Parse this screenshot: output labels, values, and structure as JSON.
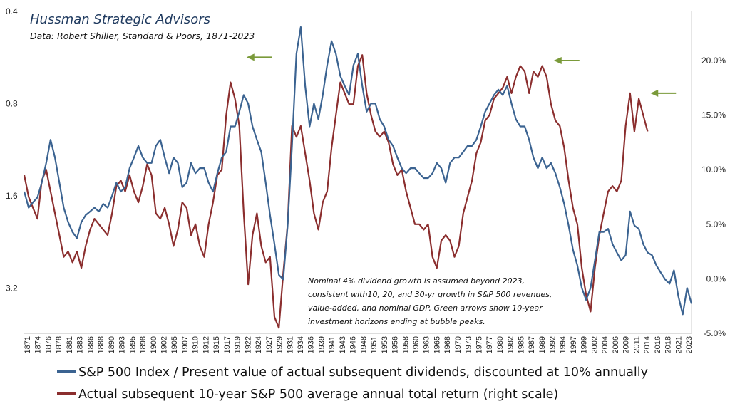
{
  "chart_data": {
    "type": "line",
    "title": "Hussman Strategic Advisors",
    "subtitle": "Data: Robert Shiller, Standard & Poors, 1871-2023",
    "annotation": [
      "Nominal 4% dividend growth is assumed beyond 2023,",
      "consistent with10, 20,  and 30-yr growth in S&P 500  revenues,",
      "value-added, and nominal GDP. Green arrows show 10-year",
      "investment horizons ending at bubble peaks."
    ],
    "x_range": [
      1871,
      2023
    ],
    "x_tick_labels": [
      "1871",
      "1874",
      "1876",
      "1878",
      "1881",
      "1883",
      "1886",
      "1888",
      "1890",
      "1893",
      "1895",
      "1898",
      "1900",
      "1902",
      "1905",
      "1907",
      "1910",
      "1912",
      "1915",
      "1917",
      "1919",
      "1922",
      "1924",
      "1927",
      "1929",
      "1931",
      "1934",
      "1936",
      "1939",
      "1941",
      "1943",
      "1946",
      "1948",
      "1951",
      "1953",
      "1956",
      "1958",
      "1960",
      "1963",
      "1965",
      "1968",
      "1970",
      "1973",
      "1975",
      "1977",
      "1980",
      "1982",
      "1985",
      "1987",
      "1989",
      "1992",
      "1994",
      "1997",
      "1999",
      "2002",
      "2004",
      "2006",
      "2009",
      "2011",
      "2014",
      "2016",
      "2018",
      "2021",
      "2023"
    ],
    "left_axis": {
      "scale": "log",
      "inverted": true,
      "range": [
        0.4,
        4.5
      ],
      "tick_values": [
        0.4,
        0.8,
        1.6,
        3.2
      ],
      "tick_labels": [
        "0.4",
        "0.8",
        "1.6",
        "3.2"
      ]
    },
    "right_axis": {
      "scale": "linear",
      "range": [
        -5.0,
        24.5
      ],
      "tick_values": [
        -5,
        0,
        5,
        10,
        15,
        20
      ],
      "tick_labels": [
        "-5.0%",
        "0.0%",
        "5.0%",
        "10.0%",
        "15.0%",
        "20.0%"
      ]
    },
    "grid": false,
    "legend_position": "bottom",
    "series": [
      {
        "name": "S&P 500 Index / Present value of actual subsequent dividends, discounted at 10% annually",
        "axis": "left",
        "color": "#3b6391",
        "x": [
          1871,
          1872,
          1873,
          1874,
          1875,
          1876,
          1877,
          1878,
          1879,
          1880,
          1881,
          1882,
          1883,
          1884,
          1885,
          1886,
          1887,
          1888,
          1889,
          1890,
          1891,
          1892,
          1893,
          1894,
          1895,
          1896,
          1897,
          1898,
          1899,
          1900,
          1901,
          1902,
          1903,
          1904,
          1905,
          1906,
          1907,
          1908,
          1909,
          1910,
          1911,
          1912,
          1913,
          1914,
          1915,
          1916,
          1917,
          1918,
          1919,
          1920,
          1921,
          1922,
          1923,
          1924,
          1925,
          1926,
          1927,
          1928,
          1929,
          1930,
          1931,
          1932,
          1933,
          1934,
          1935,
          1936,
          1937,
          1938,
          1939,
          1940,
          1941,
          1942,
          1943,
          1944,
          1945,
          1946,
          1947,
          1948,
          1949,
          1950,
          1951,
          1952,
          1953,
          1954,
          1955,
          1956,
          1957,
          1958,
          1959,
          1960,
          1961,
          1962,
          1963,
          1964,
          1965,
          1966,
          1967,
          1968,
          1969,
          1970,
          1971,
          1972,
          1973,
          1974,
          1975,
          1976,
          1977,
          1978,
          1979,
          1980,
          1981,
          1982,
          1983,
          1984,
          1985,
          1986,
          1987,
          1988,
          1989,
          1990,
          1991,
          1992,
          1993,
          1994,
          1995,
          1996,
          1997,
          1998,
          1999,
          2000,
          2001,
          2002,
          2003,
          2004,
          2005,
          2006,
          2007,
          2008,
          2009,
          2010,
          2011,
          2012,
          2013,
          2014,
          2015,
          2016,
          2017,
          2018,
          2019,
          2020,
          2021,
          2022,
          2023
        ],
        "values": [
          1.55,
          1.75,
          1.68,
          1.62,
          1.45,
          1.25,
          1.05,
          1.2,
          1.45,
          1.75,
          1.95,
          2.1,
          2.2,
          1.95,
          1.85,
          1.8,
          1.75,
          1.8,
          1.7,
          1.75,
          1.6,
          1.45,
          1.55,
          1.5,
          1.3,
          1.2,
          1.1,
          1.2,
          1.25,
          1.25,
          1.1,
          1.05,
          1.2,
          1.35,
          1.2,
          1.25,
          1.5,
          1.45,
          1.25,
          1.35,
          1.3,
          1.3,
          1.45,
          1.55,
          1.35,
          1.2,
          1.15,
          0.95,
          0.95,
          0.85,
          0.75,
          0.8,
          0.95,
          1.05,
          1.15,
          1.45,
          1.85,
          2.3,
          2.9,
          3.0,
          2.0,
          1.1,
          0.55,
          0.45,
          0.7,
          0.95,
          0.8,
          0.9,
          0.75,
          0.6,
          0.5,
          0.55,
          0.65,
          0.7,
          0.75,
          0.6,
          0.55,
          0.7,
          0.85,
          0.8,
          0.8,
          0.9,
          0.95,
          1.05,
          1.1,
          1.2,
          1.3,
          1.35,
          1.3,
          1.3,
          1.35,
          1.4,
          1.4,
          1.35,
          1.25,
          1.3,
          1.45,
          1.25,
          1.2,
          1.2,
          1.15,
          1.1,
          1.1,
          1.05,
          0.95,
          0.85,
          0.8,
          0.75,
          0.72,
          0.75,
          0.7,
          0.8,
          0.9,
          0.95,
          0.95,
          1.05,
          1.2,
          1.3,
          1.2,
          1.3,
          1.25,
          1.35,
          1.5,
          1.7,
          2.0,
          2.4,
          2.7,
          3.2,
          3.5,
          3.2,
          2.6,
          2.1,
          2.1,
          2.05,
          2.3,
          2.45,
          2.6,
          2.5,
          1.8,
          2.0,
          2.05,
          2.3,
          2.45,
          2.5,
          2.7,
          2.85,
          3.0,
          3.1,
          2.8,
          3.4,
          3.9,
          3.2,
          3.6
        ]
      },
      {
        "name": "Actual subsequent 10-year S&P 500 average annual total return (right scale)",
        "axis": "right",
        "color": "#8b2e2e",
        "x": [
          1871,
          1872,
          1873,
          1874,
          1875,
          1876,
          1877,
          1878,
          1879,
          1880,
          1881,
          1882,
          1883,
          1884,
          1885,
          1886,
          1887,
          1888,
          1889,
          1890,
          1891,
          1892,
          1893,
          1894,
          1895,
          1896,
          1897,
          1898,
          1899,
          1900,
          1901,
          1902,
          1903,
          1904,
          1905,
          1906,
          1907,
          1908,
          1909,
          1910,
          1911,
          1912,
          1913,
          1914,
          1915,
          1916,
          1917,
          1918,
          1919,
          1920,
          1921,
          1922,
          1923,
          1924,
          1925,
          1926,
          1927,
          1928,
          1929,
          1930,
          1931,
          1932,
          1933,
          1934,
          1935,
          1936,
          1937,
          1938,
          1939,
          1940,
          1941,
          1942,
          1943,
          1944,
          1945,
          1946,
          1947,
          1948,
          1949,
          1950,
          1951,
          1952,
          1953,
          1954,
          1955,
          1956,
          1957,
          1958,
          1959,
          1960,
          1961,
          1962,
          1963,
          1964,
          1965,
          1966,
          1967,
          1968,
          1969,
          1970,
          1971,
          1972,
          1973,
          1974,
          1975,
          1976,
          1977,
          1978,
          1979,
          1980,
          1981,
          1982,
          1983,
          1984,
          1985,
          1986,
          1987,
          1988,
          1989,
          1990,
          1991,
          1992,
          1993,
          1994,
          1995,
          1996,
          1997,
          1998,
          1999,
          2000,
          2001,
          2002,
          2003,
          2004,
          2005,
          2006,
          2007,
          2008,
          2009,
          2010,
          2011,
          2012,
          2013
        ],
        "values": [
          9.5,
          7.5,
          6.5,
          5.5,
          9.0,
          10.0,
          8.0,
          6.0,
          4.0,
          2.0,
          2.5,
          1.5,
          2.5,
          1.0,
          3.0,
          4.5,
          5.5,
          5.0,
          4.5,
          4.0,
          6.0,
          8.5,
          9.0,
          8.0,
          9.5,
          8.0,
          7.0,
          8.5,
          10.5,
          9.5,
          6.0,
          5.5,
          6.5,
          5.0,
          3.0,
          4.5,
          7.0,
          6.5,
          4.0,
          5.0,
          3.0,
          2.0,
          5.0,
          7.0,
          9.5,
          10.0,
          15.0,
          18.0,
          16.5,
          14.0,
          6.0,
          -0.5,
          4.0,
          6.0,
          3.0,
          1.5,
          2.0,
          -3.5,
          -4.5,
          0.5,
          5.0,
          14.0,
          13.0,
          14.0,
          11.5,
          9.0,
          6.0,
          4.5,
          7.0,
          8.0,
          12.0,
          15.0,
          18.0,
          17.0,
          16.0,
          16.0,
          19.5,
          20.5,
          17.0,
          15.0,
          13.5,
          13.0,
          13.5,
          12.5,
          10.5,
          9.5,
          10.0,
          8.0,
          6.5,
          5.0,
          5.0,
          4.5,
          5.0,
          2.0,
          1.0,
          3.5,
          4.0,
          3.5,
          2.0,
          3.0,
          6.0,
          7.5,
          9.0,
          11.5,
          12.5,
          14.5,
          15.0,
          16.5,
          17.0,
          17.5,
          18.5,
          17.0,
          18.5,
          19.5,
          19.0,
          17.0,
          19.0,
          18.5,
          19.5,
          18.5,
          16.0,
          14.5,
          14.0,
          12.0,
          9.0,
          6.5,
          5.0,
          1.0,
          -1.5,
          -3.0,
          1.0,
          4.0,
          6.0,
          8.0,
          8.5,
          8.0,
          9.0,
          14.0,
          17.0,
          13.5,
          16.5,
          15.0,
          13.5
        ]
      }
    ],
    "arrows": [
      {
        "x": 1920,
        "axis": "right",
        "y": 20.3,
        "color": "#7a9a3a"
      },
      {
        "x": 1990,
        "axis": "right",
        "y": 20.0,
        "color": "#7a9a3a"
      },
      {
        "x": 2012,
        "axis": "right",
        "y": 17.0,
        "color": "#7a9a3a"
      }
    ]
  }
}
